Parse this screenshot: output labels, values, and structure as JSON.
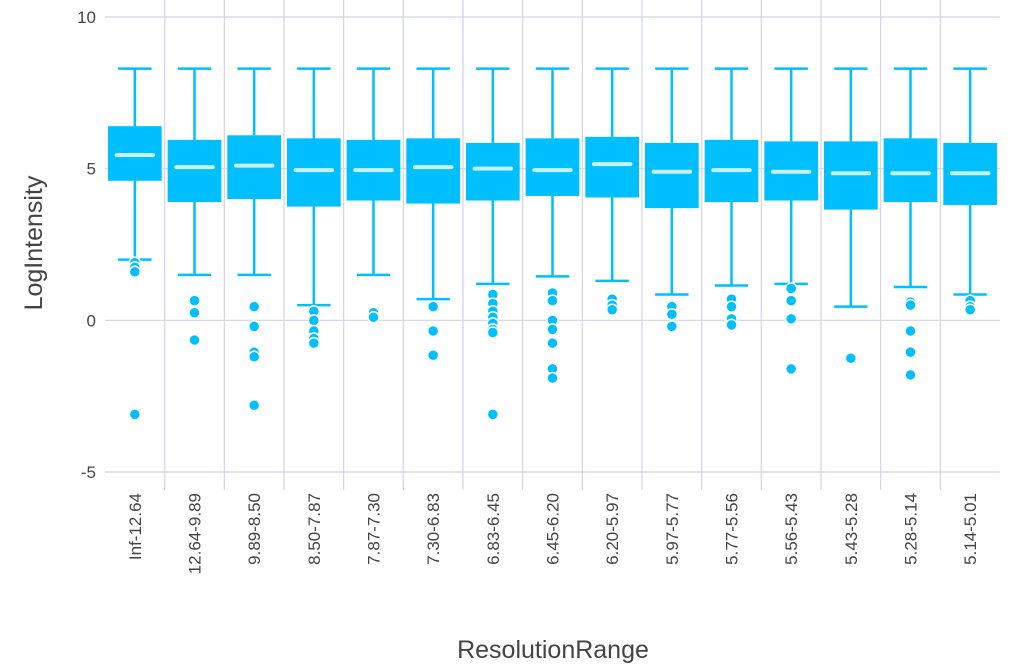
{
  "chart_data": {
    "type": "box",
    "title": "",
    "xlabel": "ResolutionRange",
    "ylabel": "LogIntensity",
    "ylim": [
      -5,
      10
    ],
    "yticks": [
      -5,
      0,
      5,
      10
    ],
    "grid": true,
    "colors": {
      "box": "#00bfff",
      "median": "#c7f2f5",
      "grid": "#d3d3e8",
      "text": "#444444"
    },
    "categories": [
      "Inf-12.64",
      "12.64-9.89",
      "9.89-8.50",
      "8.50-7.87",
      "7.87-7.30",
      "7.30-6.83",
      "6.83-6.45",
      "6.45-6.20",
      "6.20-5.97",
      "5.97-5.77",
      "5.77-5.56",
      "5.56-5.43",
      "5.43-5.28",
      "5.28-5.14",
      "5.14-5.01"
    ],
    "boxes": [
      {
        "whisker_low": 2.0,
        "q1": 4.6,
        "median": 5.45,
        "q3": 6.4,
        "whisker_high": 8.3,
        "outliers": [
          1.9,
          1.75,
          1.6,
          -3.1
        ]
      },
      {
        "whisker_low": 1.5,
        "q1": 3.9,
        "median": 5.05,
        "q3": 5.95,
        "whisker_high": 8.3,
        "outliers": [
          0.65,
          0.25,
          -0.65
        ]
      },
      {
        "whisker_low": 1.5,
        "q1": 4.0,
        "median": 5.1,
        "q3": 6.1,
        "whisker_high": 8.3,
        "outliers": [
          0.45,
          -0.2,
          -1.05,
          -1.2,
          -2.8
        ]
      },
      {
        "whisker_low": 0.5,
        "q1": 3.75,
        "median": 4.95,
        "q3": 6.0,
        "whisker_high": 8.3,
        "outliers": [
          0.3,
          0.0,
          -0.35,
          -0.6,
          -0.75
        ]
      },
      {
        "whisker_low": 1.5,
        "q1": 3.95,
        "median": 4.95,
        "q3": 5.95,
        "whisker_high": 8.3,
        "outliers": [
          0.25,
          0.1
        ]
      },
      {
        "whisker_low": 0.7,
        "q1": 3.85,
        "median": 5.05,
        "q3": 6.0,
        "whisker_high": 8.3,
        "outliers": [
          0.45,
          -0.35,
          -1.15
        ]
      },
      {
        "whisker_low": 1.2,
        "q1": 3.95,
        "median": 5.0,
        "q3": 5.85,
        "whisker_high": 8.3,
        "outliers": [
          0.85,
          0.55,
          0.3,
          0.1,
          -0.1,
          -0.3,
          -0.4,
          -3.1
        ]
      },
      {
        "whisker_low": 1.45,
        "q1": 4.1,
        "median": 4.95,
        "q3": 6.0,
        "whisker_high": 8.3,
        "outliers": [
          0.9,
          0.65,
          0.0,
          -0.3,
          -0.75,
          -1.6,
          -1.9
        ]
      },
      {
        "whisker_low": 1.3,
        "q1": 4.05,
        "median": 5.15,
        "q3": 6.05,
        "whisker_high": 8.3,
        "outliers": [
          0.7,
          0.5,
          0.35
        ]
      },
      {
        "whisker_low": 0.85,
        "q1": 3.7,
        "median": 4.9,
        "q3": 5.85,
        "whisker_high": 8.3,
        "outliers": [
          0.45,
          0.2,
          -0.2
        ]
      },
      {
        "whisker_low": 1.15,
        "q1": 3.9,
        "median": 4.95,
        "q3": 5.95,
        "whisker_high": 8.3,
        "outliers": [
          0.7,
          0.45,
          0.05,
          -0.15
        ]
      },
      {
        "whisker_low": 1.2,
        "q1": 3.95,
        "median": 4.9,
        "q3": 5.9,
        "whisker_high": 8.3,
        "outliers": [
          1.05,
          0.65,
          0.05,
          -1.6
        ]
      },
      {
        "whisker_low": 0.45,
        "q1": 3.65,
        "median": 4.85,
        "q3": 5.9,
        "whisker_high": 8.3,
        "outliers": [
          -1.25
        ]
      },
      {
        "whisker_low": 1.1,
        "q1": 3.9,
        "median": 4.85,
        "q3": 6.0,
        "whisker_high": 8.3,
        "outliers": [
          0.6,
          0.5,
          -0.35,
          -1.05,
          -1.8
        ]
      },
      {
        "whisker_low": 0.85,
        "q1": 3.8,
        "median": 4.85,
        "q3": 5.85,
        "whisker_high": 8.3,
        "outliers": [
          0.65,
          0.45,
          0.35
        ]
      }
    ]
  }
}
